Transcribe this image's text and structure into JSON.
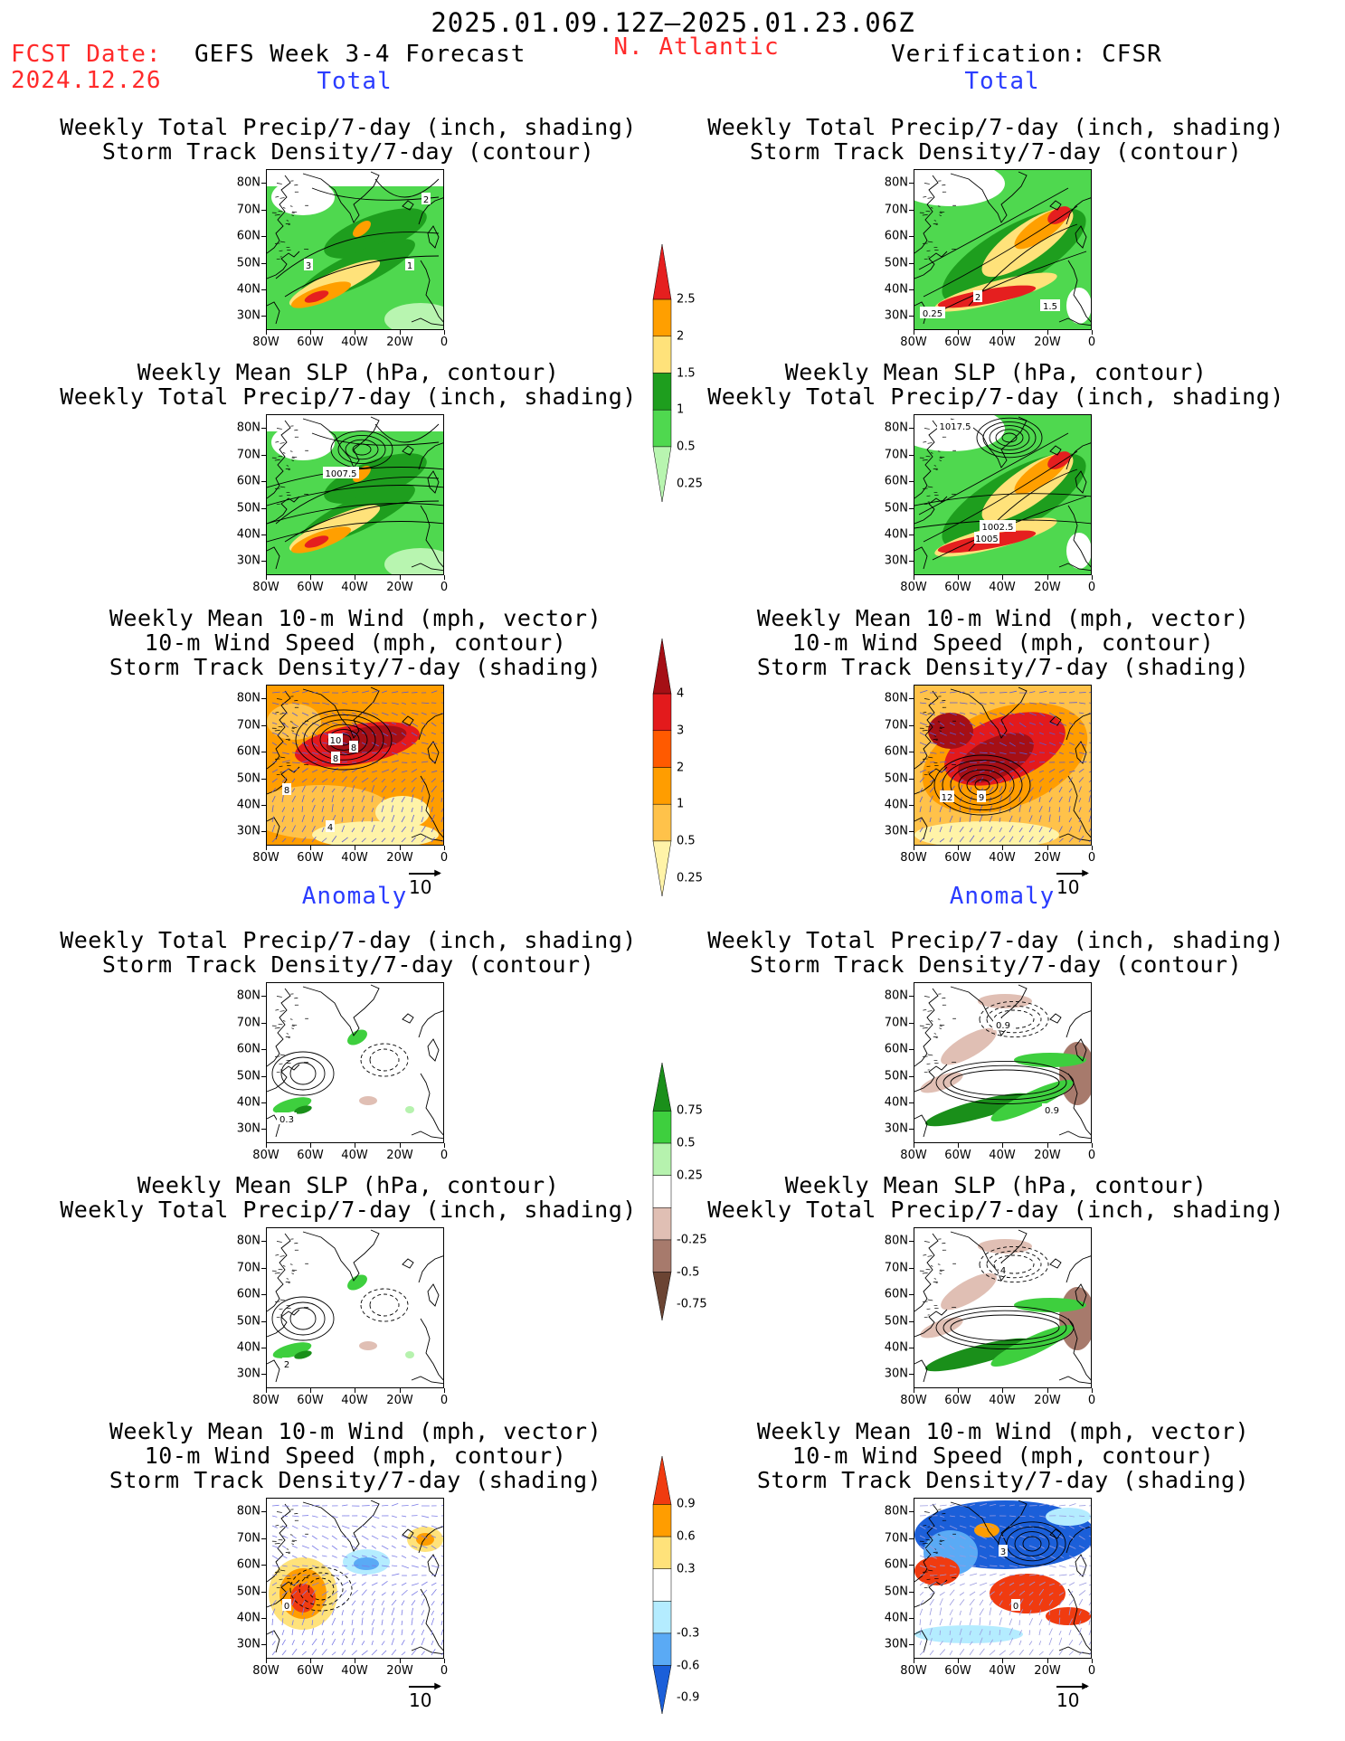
{
  "header": {
    "date_range": "2025.01.09.12Z–2025.01.23.06Z",
    "fcst_label": "FCST Date:",
    "fcst_date": "2024.12.26",
    "model_title": "GEFS Week 3-4 Forecast",
    "region": "N. Atlantic",
    "verification": "Verification: CFSR"
  },
  "sections": {
    "total": "Total",
    "anomaly": "Anomaly"
  },
  "titles": {
    "precip_track": [
      "Weekly Total Precip/7-day (inch, shading)",
      "Storm Track Density/7-day (contour)"
    ],
    "slp_precip": [
      "Weekly Mean SLP (hPa, contour)",
      "Weekly Total Precip/7-day (inch, shading)"
    ],
    "wind_track": [
      "Weekly Mean 10-m Wind (mph, vector)",
      "10-m Wind Speed (mph, contour)",
      "Storm Track Density/7-day (shading)"
    ]
  },
  "axes": {
    "lat": [
      "80N",
      "70N",
      "60N",
      "50N",
      "40N",
      "30N"
    ],
    "lon": [
      "80W",
      "60W",
      "40W",
      "20W",
      "0"
    ]
  },
  "vector_ref": "10",
  "colorbars": {
    "precip_total": {
      "labels": [
        "2.5",
        "2",
        "1.5",
        "1",
        "0.5",
        "0.25"
      ],
      "colors": [
        "#e51f1f",
        "#ff9f00",
        "#ffe27a",
        "#1e9e1e",
        "#4fd84f",
        "#b8f5b0"
      ]
    },
    "track_total": {
      "labels": [
        "4",
        "3",
        "2",
        "1",
        "0.5",
        "0.25"
      ],
      "colors": [
        "#a50f15",
        "#e31a1c",
        "#ff5a00",
        "#ff9d00",
        "#ffc24a",
        "#fff3a8"
      ]
    },
    "precip_anom": {
      "labels": [
        "0.75",
        "0.5",
        "0.25",
        "-0.25",
        "-0.5",
        "-0.75"
      ],
      "colors": [
        "#1a8f1a",
        "#3ecf3e",
        "#b6f2ae",
        "#ffffff",
        "#e0bfb4",
        "#a77a6c",
        "#6b4433"
      ]
    },
    "track_anom": {
      "labels": [
        "0.9",
        "0.6",
        "0.3",
        "-0.3",
        "-0.6",
        "-0.9"
      ],
      "colors": [
        "#f03b10",
        "#ff9d00",
        "#ffe27a",
        "#ffffff",
        "#b4ecff",
        "#5aaaf5",
        "#1b5fd9"
      ]
    }
  },
  "contour_labels": {
    "p1l": [
      "2",
      "3",
      "1"
    ],
    "p1r": [
      "2",
      "0.25",
      "1.5"
    ],
    "p2l": [
      "1007.5"
    ],
    "p2r": [
      "1017.5",
      "1002.5",
      "1005"
    ],
    "p3l": [
      "10",
      "8",
      "8",
      "8",
      "4"
    ],
    "p3r": [
      "12",
      "9"
    ],
    "p4l": [
      "0.3"
    ],
    "p4r": [
      "0.9",
      "0.9"
    ],
    "p5l": [
      "2"
    ],
    "p5r": [
      "4"
    ],
    "p6l": [
      "0"
    ],
    "p6r": [
      "3",
      "0"
    ]
  }
}
